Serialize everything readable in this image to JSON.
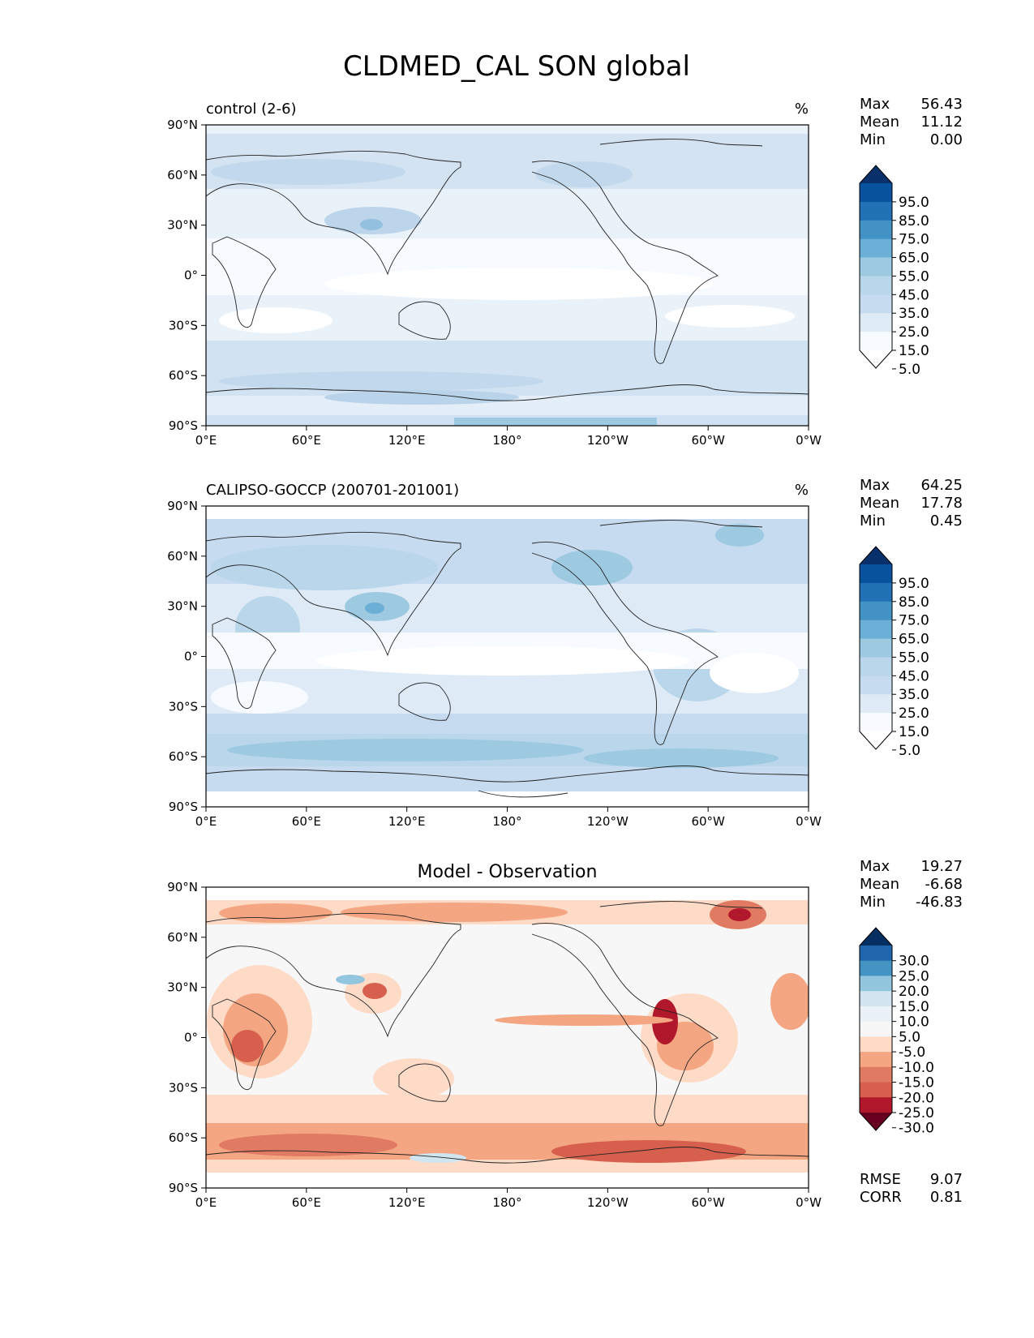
{
  "figure": {
    "title": "CLDMED_CAL SON global"
  },
  "axes": {
    "lat_ticks": [
      "90°N",
      "60°N",
      "30°N",
      "0°",
      "30°S",
      "60°S",
      "90°S"
    ],
    "lon_ticks": [
      "0°E",
      "60°E",
      "120°E",
      "180°",
      "120°W",
      "60°W",
      "0°W"
    ]
  },
  "panels": [
    {
      "left_title": "control (2-6)",
      "center_title": "",
      "units": "%",
      "stats": {
        "max_label": "Max",
        "max": "56.43",
        "mean_label": "Mean",
        "mean": "11.12",
        "min_label": "Min",
        "min": "0.00"
      },
      "colorbar": {
        "levels": [
          "95.0",
          "85.0",
          "75.0",
          "65.0",
          "55.0",
          "45.0",
          "35.0",
          "25.0",
          "15.0",
          "5.0"
        ],
        "colors": [
          "#08306b",
          "#08519c",
          "#2171b5",
          "#4292c6",
          "#6baed6",
          "#9ecae1",
          "#b9d6ea",
          "#c6dbef",
          "#deebf7",
          "#f7fbff",
          "#ffffff"
        ]
      }
    },
    {
      "left_title": "CALIPSO-GOCCP (200701-201001)",
      "center_title": "",
      "units": "%",
      "stats": {
        "max_label": "Max",
        "max": "64.25",
        "mean_label": "Mean",
        "mean": "17.78",
        "min_label": "Min",
        "min": "0.45"
      },
      "colorbar": {
        "levels": [
          "95.0",
          "85.0",
          "75.0",
          "65.0",
          "55.0",
          "45.0",
          "35.0",
          "25.0",
          "15.0",
          "5.0"
        ],
        "colors": [
          "#08306b",
          "#08519c",
          "#2171b5",
          "#4292c6",
          "#6baed6",
          "#9ecae1",
          "#b9d6ea",
          "#c6dbef",
          "#deebf7",
          "#f7fbff",
          "#ffffff"
        ]
      }
    },
    {
      "left_title": "",
      "center_title": "Model - Observation",
      "units": "",
      "stats": {
        "max_label": "Max",
        "max": "19.27",
        "mean_label": "Mean",
        "mean": "-6.68",
        "min_label": "Min",
        "min": "-46.83"
      },
      "colorbar": {
        "levels": [
          "30.0",
          "25.0",
          "20.0",
          "15.0",
          "10.0",
          "5.0",
          "-5.0",
          "-10.0",
          "-15.0",
          "-20.0",
          "-25.0",
          "-30.0"
        ],
        "colors": [
          "#053061",
          "#2166ac",
          "#4393c3",
          "#92c5de",
          "#d1e5f0",
          "#eaf2f7",
          "#f7f7f7",
          "#fddbc7",
          "#f4a582",
          "#e07a62",
          "#d6604d",
          "#b2182b",
          "#67001f"
        ]
      },
      "metrics": {
        "rmse_label": "RMSE",
        "rmse": "9.07",
        "corr_label": "CORR",
        "corr": "0.81"
      }
    }
  ]
}
